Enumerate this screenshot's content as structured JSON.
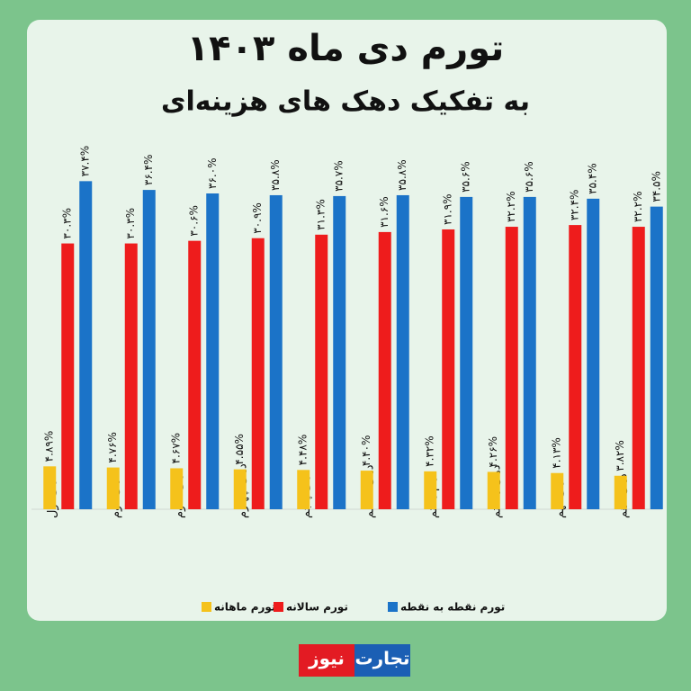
{
  "chart_data": {
    "type": "bar",
    "title": "تورم دی ماه ۱۴۰۳",
    "subtitle": "به تفکیک دهک های هزینه‌ای",
    "categories": [
      "دهک اول",
      "دهک دوم",
      "دهک سوم",
      "دهک چهارم",
      "دهک پنجم",
      "دهک ششم",
      "دهم هفتم",
      "دهک هشتم",
      "دهک نهم",
      "دهک دهم"
    ],
    "series": [
      {
        "name": "تورم ماهانه",
        "color": "#f5c21b",
        "values": [
          4.89,
          4.76,
          4.67,
          4.55,
          4.48,
          4.4,
          4.32,
          4.26,
          4.13,
          3.82
        ],
        "value_labels": [
          "۴.۸۹%",
          "۴.۷۶%",
          "۴.۶۷%",
          "۴.۵۵%",
          "۴.۴۸%",
          "۴.۴۰%",
          "۴.۳۲%",
          "۴.۲۶%",
          "۴.۱۳%",
          "۳.۸۲%"
        ]
      },
      {
        "name": "تورم سالانه",
        "color": "#ee1c1c",
        "values": [
          30.3,
          30.3,
          30.6,
          30.9,
          31.3,
          31.6,
          31.9,
          32.2,
          32.4,
          32.2
        ],
        "value_labels": [
          "۳۰.۳%",
          "۳۰.۳%",
          "۳۰.۶%",
          "۳۰.۹%",
          "۳۱.۳%",
          "۳۱.۶%",
          "۳۱.۹%",
          "۳۲.۲%",
          "۳۲.۴%",
          "۳۲.۲%"
        ]
      },
      {
        "name": "تورم نقطه به نقطه",
        "color": "#1b73c8",
        "values": [
          37.4,
          36.4,
          36.0,
          35.8,
          35.7,
          35.8,
          35.6,
          35.6,
          35.4,
          34.5
        ],
        "value_labels": [
          "۳۷.۴%",
          "۳۶.۴%",
          "۳۶.۰%",
          "۳۵.۸%",
          "۳۵.۷%",
          "۳۵.۸%",
          "۳۵.۶%",
          "۳۵.۶%",
          "۳۵.۴%",
          "۳۴.۵%"
        ]
      }
    ],
    "ylim": [
      0,
      40
    ]
  },
  "logo": {
    "part1": "تجارت",
    "part2": "نیوز"
  }
}
